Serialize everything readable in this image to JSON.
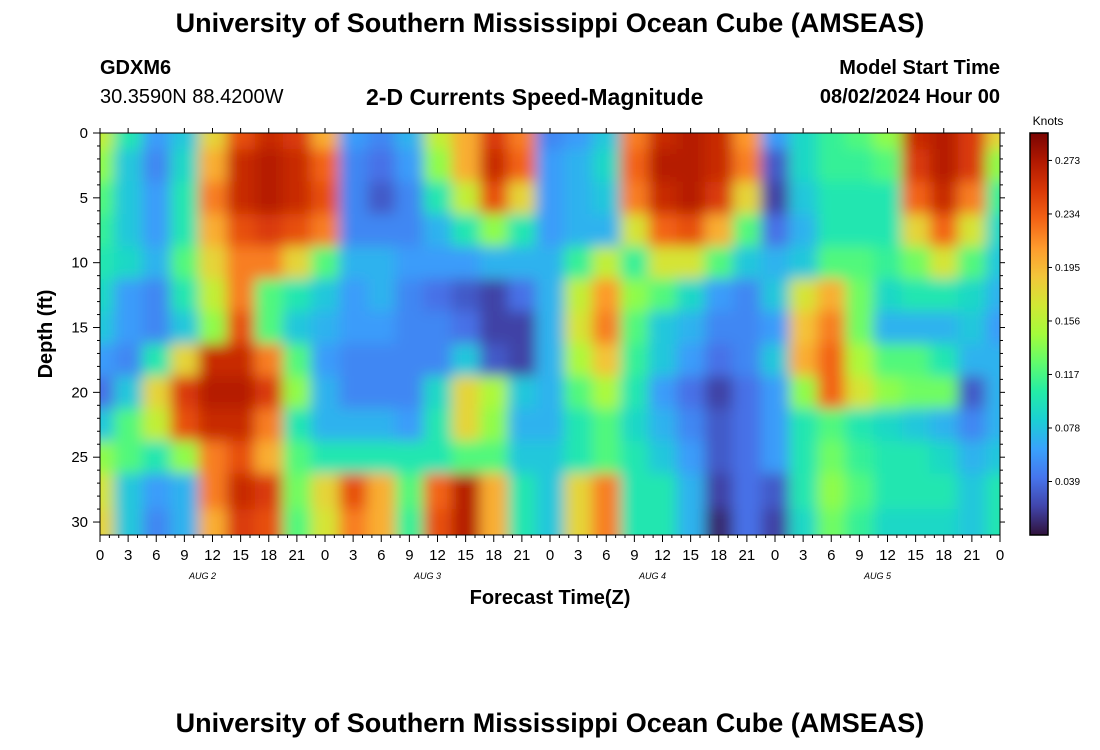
{
  "page": {
    "title_top": "University of Southern Mississippi Ocean Cube (AMSEAS)",
    "title_bottom": "University of Southern Mississippi Ocean Cube (AMSEAS)",
    "station_id": "GDXM6",
    "coordinates": "30.3590N  88.4200W",
    "plot_title": "2-D Currents Speed-Magnitude",
    "model_start_label": "Model Start Time",
    "model_start_value": "08/02/2024 Hour 00"
  },
  "colors": {
    "colormap": [
      "#30123b",
      "#4145ab",
      "#4675ed",
      "#39a2fc",
      "#1bcfd4",
      "#24eca6",
      "#61fc6c",
      "#a4fc3b",
      "#d1e834",
      "#f3c63a",
      "#fe9b2d",
      "#f36315",
      "#d93806",
      "#b11901",
      "#7a0402"
    ]
  },
  "chart_data": {
    "type": "heatmap",
    "title": "2-D Currents Speed-Magnitude",
    "xlabel": "Forecast Time(Z)",
    "ylabel": "Depth (ft)",
    "x_tick_labels": [
      "0",
      "3",
      "6",
      "9",
      "12",
      "15",
      "18",
      "21",
      "0",
      "3",
      "6",
      "9",
      "12",
      "15",
      "18",
      "21",
      "0",
      "3",
      "6",
      "9",
      "12",
      "15",
      "18",
      "21",
      "0",
      "3",
      "6",
      "9",
      "12",
      "15",
      "18",
      "21",
      "0"
    ],
    "date_labels": [
      "AUG 2",
      "AUG 3",
      "AUG 4",
      "AUG 5"
    ],
    "xlim_hours": [
      0,
      96
    ],
    "y_ticks": [
      0,
      5,
      10,
      15,
      20,
      25,
      30
    ],
    "ylim": [
      0,
      31
    ],
    "y_inverted": true,
    "colorbar": {
      "label": "Knots",
      "ticks": [
        "0.273",
        "0.234",
        "0.195",
        "0.156",
        "0.117",
        "0.078",
        "0.039"
      ],
      "range": [
        0,
        0.293
      ]
    },
    "depths": [
      0,
      2.5,
      5,
      7.5,
      10,
      12.5,
      15,
      17.5,
      20,
      22.5,
      25,
      27.5,
      30.5
    ],
    "hours": [
      0,
      3,
      6,
      9,
      12,
      15,
      18,
      21,
      24,
      27,
      30,
      33,
      36,
      39,
      42,
      45,
      48,
      51,
      54,
      57,
      60,
      63,
      66,
      69,
      72,
      75,
      78,
      81,
      84,
      87,
      90,
      93,
      96
    ],
    "values": [
      [
        0.16,
        0.1,
        0.06,
        0.08,
        0.18,
        0.24,
        0.26,
        0.25,
        0.2,
        0.06,
        0.05,
        0.07,
        0.16,
        0.2,
        0.25,
        0.22,
        0.05,
        0.06,
        0.08,
        0.22,
        0.26,
        0.27,
        0.26,
        0.21,
        0.06,
        0.09,
        0.11,
        0.12,
        0.14,
        0.26,
        0.27,
        0.25,
        0.18
      ],
      [
        0.14,
        0.08,
        0.05,
        0.09,
        0.2,
        0.26,
        0.27,
        0.26,
        0.23,
        0.05,
        0.04,
        0.06,
        0.14,
        0.2,
        0.26,
        0.23,
        0.06,
        0.07,
        0.09,
        0.23,
        0.27,
        0.27,
        0.26,
        0.22,
        0.03,
        0.09,
        0.11,
        0.11,
        0.12,
        0.25,
        0.27,
        0.25,
        0.14
      ],
      [
        0.12,
        0.08,
        0.06,
        0.1,
        0.22,
        0.26,
        0.27,
        0.26,
        0.24,
        0.05,
        0.03,
        0.05,
        0.1,
        0.16,
        0.24,
        0.18,
        0.06,
        0.07,
        0.08,
        0.22,
        0.26,
        0.27,
        0.25,
        0.18,
        0.02,
        0.08,
        0.1,
        0.1,
        0.1,
        0.23,
        0.26,
        0.22,
        0.11
      ],
      [
        0.11,
        0.08,
        0.06,
        0.1,
        0.2,
        0.24,
        0.25,
        0.24,
        0.22,
        0.05,
        0.05,
        0.05,
        0.07,
        0.1,
        0.14,
        0.1,
        0.06,
        0.07,
        0.07,
        0.17,
        0.23,
        0.24,
        0.2,
        0.12,
        0.04,
        0.07,
        0.1,
        0.1,
        0.1,
        0.18,
        0.23,
        0.17,
        0.09
      ],
      [
        0.1,
        0.09,
        0.07,
        0.12,
        0.18,
        0.22,
        0.22,
        0.18,
        0.12,
        0.07,
        0.07,
        0.06,
        0.06,
        0.06,
        0.07,
        0.07,
        0.07,
        0.11,
        0.16,
        0.11,
        0.17,
        0.17,
        0.12,
        0.08,
        0.07,
        0.08,
        0.12,
        0.12,
        0.11,
        0.13,
        0.17,
        0.12,
        0.08
      ],
      [
        0.09,
        0.06,
        0.05,
        0.1,
        0.16,
        0.22,
        0.12,
        0.1,
        0.08,
        0.06,
        0.07,
        0.05,
        0.04,
        0.03,
        0.02,
        0.04,
        0.07,
        0.16,
        0.21,
        0.14,
        0.12,
        0.09,
        0.06,
        0.05,
        0.08,
        0.17,
        0.2,
        0.13,
        0.09,
        0.1,
        0.1,
        0.09,
        0.07
      ],
      [
        0.08,
        0.06,
        0.05,
        0.08,
        0.14,
        0.24,
        0.12,
        0.08,
        0.07,
        0.06,
        0.06,
        0.05,
        0.05,
        0.04,
        0.02,
        0.02,
        0.07,
        0.17,
        0.22,
        0.12,
        0.08,
        0.07,
        0.05,
        0.05,
        0.06,
        0.19,
        0.22,
        0.13,
        0.07,
        0.07,
        0.07,
        0.08,
        0.06
      ],
      [
        0.06,
        0.05,
        0.1,
        0.18,
        0.26,
        0.26,
        0.22,
        0.12,
        0.06,
        0.05,
        0.05,
        0.05,
        0.05,
        0.08,
        0.03,
        0.02,
        0.07,
        0.15,
        0.19,
        0.11,
        0.08,
        0.06,
        0.04,
        0.05,
        0.08,
        0.2,
        0.23,
        0.15,
        0.12,
        0.12,
        0.1,
        0.07,
        0.07
      ],
      [
        0.04,
        0.08,
        0.18,
        0.25,
        0.27,
        0.27,
        0.25,
        0.14,
        0.07,
        0.05,
        0.05,
        0.05,
        0.09,
        0.18,
        0.15,
        0.08,
        0.07,
        0.12,
        0.15,
        0.1,
        0.06,
        0.04,
        0.02,
        0.04,
        0.06,
        0.14,
        0.23,
        0.17,
        0.14,
        0.13,
        0.13,
        0.03,
        0.07
      ],
      [
        0.08,
        0.12,
        0.16,
        0.24,
        0.26,
        0.26,
        0.22,
        0.1,
        0.07,
        0.07,
        0.07,
        0.06,
        0.1,
        0.18,
        0.14,
        0.07,
        0.07,
        0.1,
        0.12,
        0.09,
        0.07,
        0.05,
        0.03,
        0.04,
        0.06,
        0.1,
        0.12,
        0.1,
        0.09,
        0.08,
        0.07,
        0.05,
        0.07
      ],
      [
        0.14,
        0.12,
        0.1,
        0.14,
        0.22,
        0.24,
        0.2,
        0.12,
        0.1,
        0.1,
        0.1,
        0.1,
        0.1,
        0.12,
        0.12,
        0.08,
        0.08,
        0.1,
        0.12,
        0.1,
        0.08,
        0.06,
        0.03,
        0.04,
        0.06,
        0.1,
        0.13,
        0.11,
        0.1,
        0.1,
        0.09,
        0.07,
        0.08
      ],
      [
        0.17,
        0.08,
        0.06,
        0.07,
        0.22,
        0.26,
        0.25,
        0.13,
        0.18,
        0.24,
        0.2,
        0.12,
        0.23,
        0.27,
        0.2,
        0.1,
        0.08,
        0.18,
        0.22,
        0.1,
        0.1,
        0.07,
        0.02,
        0.04,
        0.03,
        0.1,
        0.14,
        0.12,
        0.1,
        0.1,
        0.1,
        0.08,
        0.1
      ],
      [
        0.18,
        0.08,
        0.05,
        0.07,
        0.2,
        0.25,
        0.24,
        0.12,
        0.17,
        0.22,
        0.2,
        0.11,
        0.24,
        0.27,
        0.2,
        0.1,
        0.08,
        0.18,
        0.22,
        0.1,
        0.1,
        0.07,
        0.01,
        0.04,
        0.02,
        0.09,
        0.13,
        0.11,
        0.09,
        0.09,
        0.09,
        0.08,
        0.1
      ]
    ]
  }
}
